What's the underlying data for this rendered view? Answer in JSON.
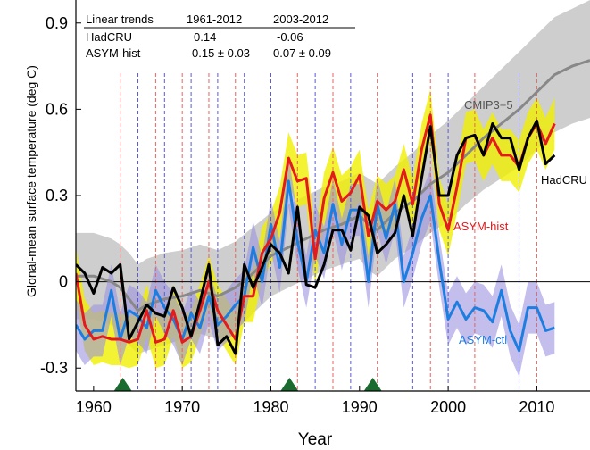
{
  "chart_data": {
    "type": "line",
    "title": "",
    "xlabel": "Year",
    "ylabel": "Glonal-mean surface temperature (deg C)",
    "xlim": [
      1958,
      2016
    ],
    "ylim": [
      -0.38,
      0.98
    ],
    "xticks": [
      1960,
      1970,
      1980,
      1990,
      2000,
      2010
    ],
    "yticks": [
      -0.3,
      0,
      0.3,
      0.6,
      0.9
    ],
    "ytick_labels": [
      "-0.3",
      "0",
      "0.3",
      "0.6",
      "0.9"
    ],
    "grid": false,
    "zero_line": true,
    "trend_table": {
      "header": [
        "Linear trends",
        "1961-2012",
        "2003-2012"
      ],
      "rows": [
        [
          "HadCRU",
          "0.14",
          "-0.06"
        ],
        [
          "ASYM-hist",
          "0.15 ± 0.03",
          "0.07 ± 0.09"
        ]
      ]
    },
    "series": [
      {
        "name": "HadCRU",
        "color": "#000000",
        "x": [
          1958,
          1959,
          1960,
          1961,
          1962,
          1963,
          1964,
          1965,
          1966,
          1967,
          1968,
          1969,
          1970,
          1971,
          1972,
          1973,
          1974,
          1975,
          1976,
          1977,
          1978,
          1979,
          1980,
          1981,
          1982,
          1983,
          1984,
          1985,
          1986,
          1987,
          1988,
          1989,
          1990,
          1991,
          1992,
          1993,
          1994,
          1995,
          1996,
          1997,
          1998,
          1999,
          2000,
          2001,
          2002,
          2003,
          2004,
          2005,
          2006,
          2007,
          2008,
          2009,
          2010,
          2011,
          2012
        ],
        "y": [
          0.06,
          0.03,
          -0.04,
          0.05,
          0.03,
          0.06,
          -0.2,
          -0.14,
          -0.08,
          -0.11,
          -0.12,
          -0.02,
          -0.09,
          -0.19,
          -0.07,
          0.06,
          -0.22,
          -0.19,
          -0.25,
          0.06,
          -0.02,
          0.05,
          0.13,
          0.1,
          0.03,
          0.26,
          -0.01,
          -0.02,
          0.06,
          0.18,
          0.18,
          0.11,
          0.26,
          0.23,
          0.1,
          0.13,
          0.17,
          0.3,
          0.16,
          0.36,
          0.54,
          0.3,
          0.3,
          0.44,
          0.5,
          0.51,
          0.44,
          0.55,
          0.5,
          0.5,
          0.39,
          0.5,
          0.56,
          0.41,
          0.44
        ]
      },
      {
        "name": "ASYM-hist",
        "color": "#e41a1c",
        "band_color": "#f0f000",
        "band_halfwidth": 0.09,
        "x": [
          1958,
          1959,
          1960,
          1961,
          1962,
          1963,
          1964,
          1965,
          1966,
          1967,
          1968,
          1969,
          1970,
          1971,
          1972,
          1973,
          1974,
          1975,
          1976,
          1977,
          1978,
          1979,
          1980,
          1981,
          1982,
          1983,
          1984,
          1985,
          1986,
          1987,
          1988,
          1989,
          1990,
          1991,
          1992,
          1993,
          1994,
          1995,
          1996,
          1997,
          1998,
          1999,
          2000,
          2001,
          2002,
          2003,
          2004,
          2005,
          2006,
          2007,
          2008,
          2009,
          2010,
          2011,
          2012
        ],
        "y": [
          0.03,
          -0.15,
          -0.2,
          -0.19,
          -0.2,
          -0.2,
          -0.21,
          -0.2,
          -0.1,
          -0.21,
          -0.2,
          -0.1,
          -0.21,
          -0.19,
          -0.1,
          0.0,
          -0.1,
          -0.15,
          -0.2,
          -0.05,
          -0.05,
          0.1,
          0.15,
          0.24,
          0.43,
          0.35,
          0.36,
          0.08,
          0.29,
          0.38,
          0.28,
          0.31,
          0.37,
          0.16,
          0.28,
          0.25,
          0.28,
          0.39,
          0.27,
          0.46,
          0.58,
          0.27,
          0.18,
          0.33,
          0.5,
          0.51,
          0.44,
          0.5,
          0.44,
          0.44,
          0.4,
          0.5,
          0.55,
          0.48,
          0.55
        ]
      },
      {
        "name": "ASYM-ctl",
        "color": "#1e7ee0",
        "band_color": "#9b92e0",
        "band_halfwidth": 0.09,
        "x": [
          1958,
          1959,
          1960,
          1961,
          1962,
          1963,
          1964,
          1965,
          1966,
          1967,
          1968,
          1969,
          1970,
          1971,
          1972,
          1973,
          1974,
          1975,
          1976,
          1977,
          1978,
          1979,
          1980,
          1981,
          1982,
          1983,
          1984,
          1985,
          1986,
          1987,
          1988,
          1989,
          1990,
          1991,
          1992,
          1993,
          1994,
          1995,
          1996,
          1997,
          1998,
          1999,
          2000,
          2001,
          2002,
          2003,
          2004,
          2005,
          2006,
          2007,
          2008,
          2009,
          2010,
          2011,
          2012
        ],
        "y": [
          -0.15,
          -0.2,
          -0.17,
          -0.17,
          -0.03,
          -0.2,
          -0.1,
          -0.12,
          -0.16,
          -0.03,
          -0.09,
          -0.13,
          -0.2,
          -0.11,
          -0.16,
          -0.05,
          -0.15,
          -0.12,
          -0.08,
          -0.05,
          0.12,
          0.0,
          0.2,
          0.05,
          0.35,
          0.14,
          0.0,
          0.18,
          0.1,
          0.27,
          0.13,
          0.25,
          0.25,
          0.0,
          0.27,
          0.15,
          0.27,
          0.0,
          0.1,
          0.22,
          0.3,
          0.07,
          -0.13,
          -0.07,
          -0.13,
          -0.09,
          -0.1,
          -0.14,
          -0.03,
          -0.17,
          -0.24,
          -0.09,
          -0.09,
          -0.17,
          -0.16
        ]
      },
      {
        "name": "CMIP3+5",
        "color": "#888888",
        "band_color": "#bdbdbd",
        "x": [
          1958,
          1960,
          1962,
          1963,
          1964,
          1965,
          1966,
          1968,
          1970,
          1972,
          1974,
          1976,
          1978,
          1980,
          1982,
          1984,
          1986,
          1988,
          1990,
          1991,
          1992,
          1993,
          1994,
          1996,
          1998,
          2000,
          2002,
          2004,
          2006,
          2008,
          2010,
          2012,
          2014,
          2016
        ],
        "y": [
          0.02,
          0.02,
          0.0,
          -0.02,
          -0.06,
          -0.1,
          -0.08,
          -0.06,
          -0.05,
          -0.03,
          -0.05,
          -0.02,
          0.03,
          0.09,
          0.12,
          0.15,
          0.18,
          0.2,
          0.23,
          0.2,
          0.18,
          0.21,
          0.24,
          0.28,
          0.34,
          0.38,
          0.44,
          0.5,
          0.55,
          0.6,
          0.66,
          0.72,
          0.75,
          0.77
        ],
        "band_lo": [
          -0.13,
          -0.13,
          -0.15,
          -0.17,
          -0.22,
          -0.25,
          -0.24,
          -0.22,
          -0.2,
          -0.18,
          -0.2,
          -0.17,
          -0.11,
          -0.05,
          -0.02,
          0.01,
          0.04,
          0.06,
          0.08,
          0.04,
          0.02,
          0.05,
          0.08,
          0.12,
          0.17,
          0.21,
          0.27,
          0.32,
          0.36,
          0.4,
          0.46,
          0.52,
          0.55,
          0.57
        ],
        "band_hi": [
          0.17,
          0.17,
          0.15,
          0.13,
          0.1,
          0.06,
          0.08,
          0.1,
          0.11,
          0.13,
          0.11,
          0.14,
          0.19,
          0.24,
          0.27,
          0.3,
          0.33,
          0.35,
          0.38,
          0.36,
          0.34,
          0.37,
          0.4,
          0.45,
          0.51,
          0.56,
          0.62,
          0.68,
          0.74,
          0.8,
          0.86,
          0.92,
          0.95,
          0.98
        ]
      }
    ],
    "vertical_markers": {
      "red": [
        1963,
        1967,
        1970,
        1973,
        1976,
        1983,
        1987,
        1992,
        1998,
        2003,
        2010
      ],
      "blue": [
        1965,
        1968,
        1971,
        1974,
        1977,
        1980,
        1985,
        1989,
        1996,
        2000,
        2008
      ]
    },
    "eruption_markers": {
      "color": "#1a6b2e",
      "years": [
        1963.3,
        1982.1,
        1991.5
      ]
    }
  }
}
